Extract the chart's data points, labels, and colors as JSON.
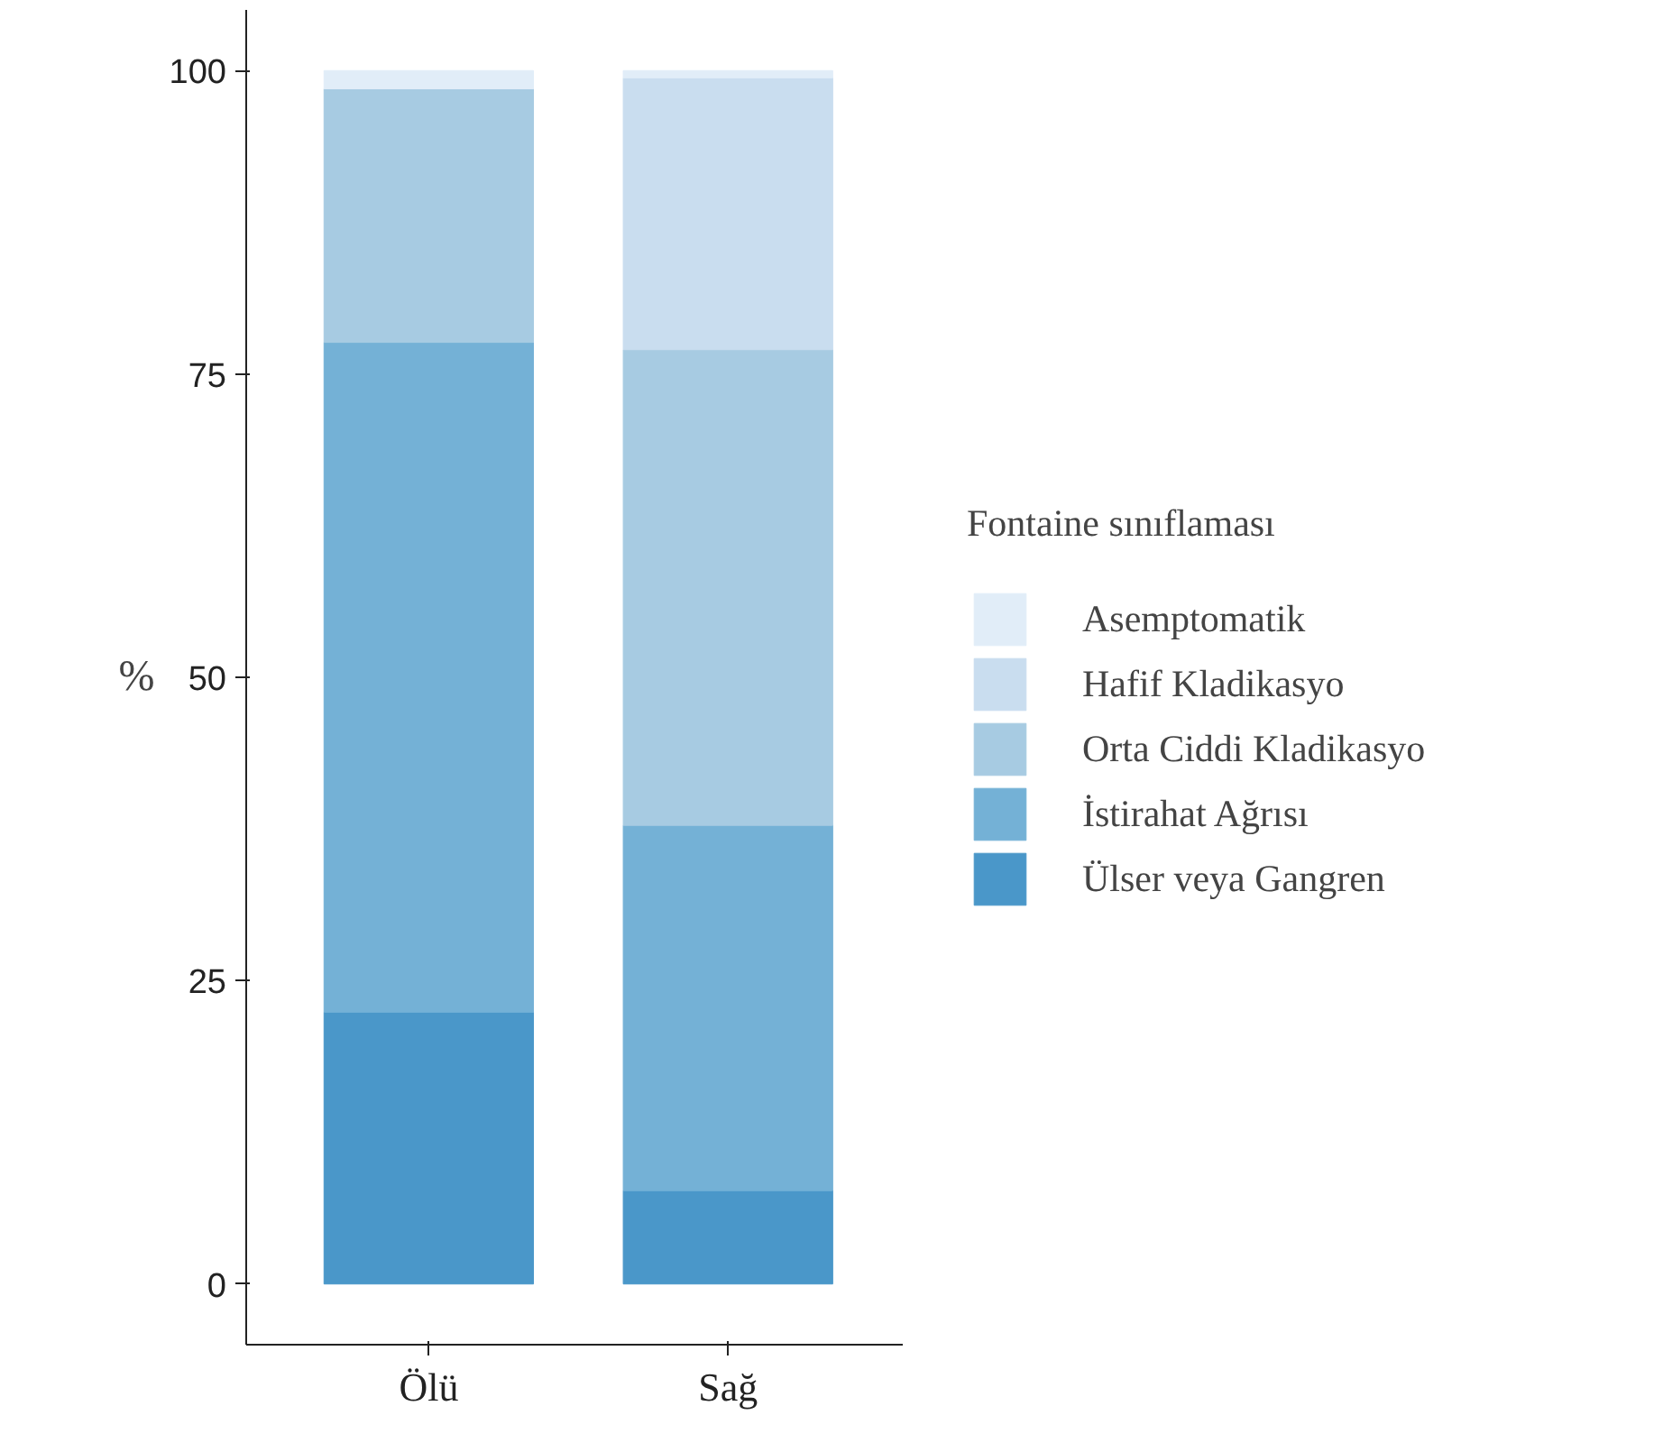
{
  "chart_data": {
    "type": "bar",
    "stacked": true,
    "ylabel": "%",
    "legend_title": "Fontaine sınıflaması",
    "categories": [
      "Ölü",
      "Sağ"
    ],
    "series": [
      {
        "name": "Ülser veya Gangren",
        "color": "#4a97c9",
        "values": [
          22.4,
          7.7
        ]
      },
      {
        "name": "İstirahat Ağrısı",
        "color": "#74b1d6",
        "values": [
          55.2,
          30.1
        ]
      },
      {
        "name": "Orta Ciddi Kladikasyo",
        "color": "#a7cbe2",
        "values": [
          20.9,
          39.2
        ]
      },
      {
        "name": "Hafif Kladikasyo",
        "color": "#c9ddef",
        "values": [
          0,
          22.4
        ]
      },
      {
        "name": "Asemptomatik",
        "color": "#e1edf8",
        "values": [
          1.5,
          0.6
        ]
      }
    ],
    "ylim": [
      -5,
      105
    ],
    "yticks": [
      0,
      25,
      50,
      75,
      100
    ],
    "grid": false,
    "legend": "right"
  }
}
